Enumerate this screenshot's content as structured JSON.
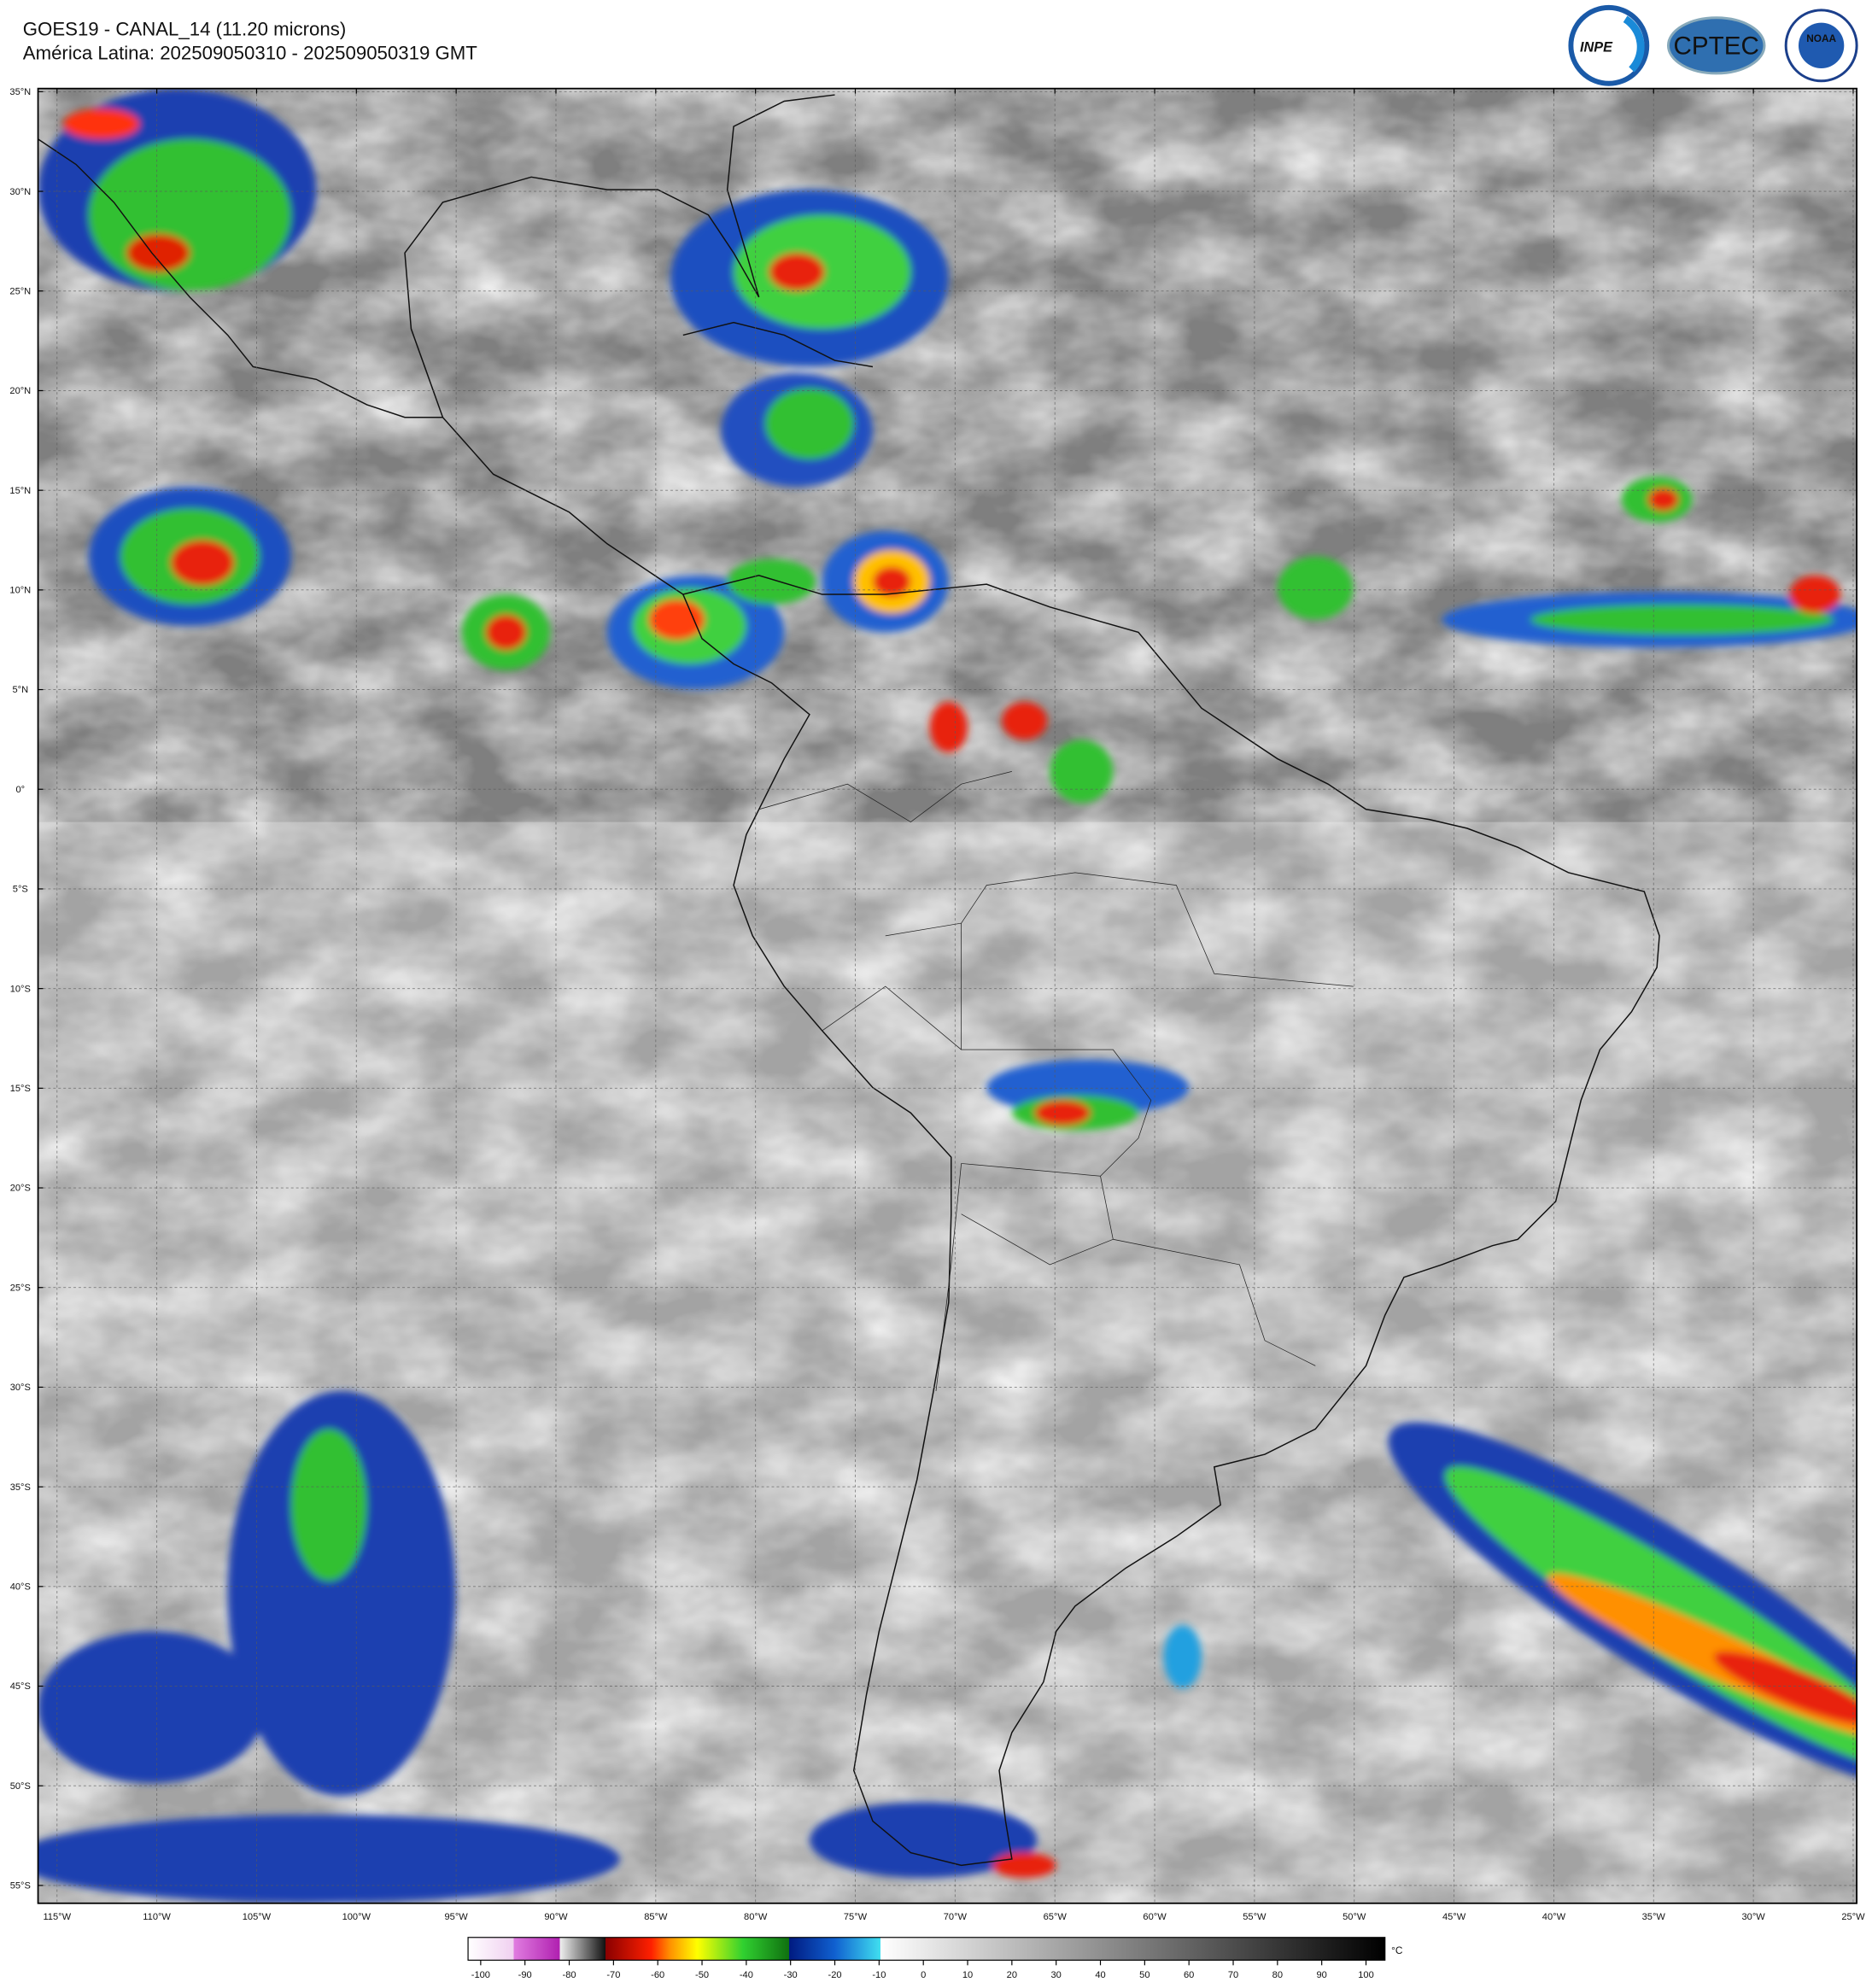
{
  "header": {
    "title": "GOES19 - CANAL_14 (11.20 microns)",
    "subtitle": "América Latina: 202509050310 - 202509050319 GMT"
  },
  "logos": [
    "INPE",
    "CPTEC",
    "NOAA"
  ],
  "map": {
    "lat_labels": [
      "35°N",
      "30°N",
      "25°N",
      "20°N",
      "15°N",
      "10°N",
      "5°N",
      "0°",
      "5°S",
      "10°S",
      "15°S",
      "20°S",
      "25°S",
      "30°S",
      "35°S",
      "40°S",
      "45°S",
      "50°S",
      "55°S"
    ],
    "lon_labels": [
      "115°W",
      "110°W",
      "105°W",
      "100°W",
      "95°W",
      "90°W",
      "85°W",
      "80°W",
      "75°W",
      "70°W",
      "65°W",
      "60°W",
      "55°W",
      "50°W",
      "45°W",
      "40°W",
      "35°W",
      "30°W",
      "25°W"
    ]
  },
  "colorbar": {
    "unit": "°C",
    "ticks": [
      -100,
      -90,
      -80,
      -70,
      -60,
      -50,
      -40,
      -30,
      -20,
      -10,
      0,
      10,
      20,
      30,
      40,
      50,
      60,
      70,
      80,
      90,
      100
    ]
  }
}
